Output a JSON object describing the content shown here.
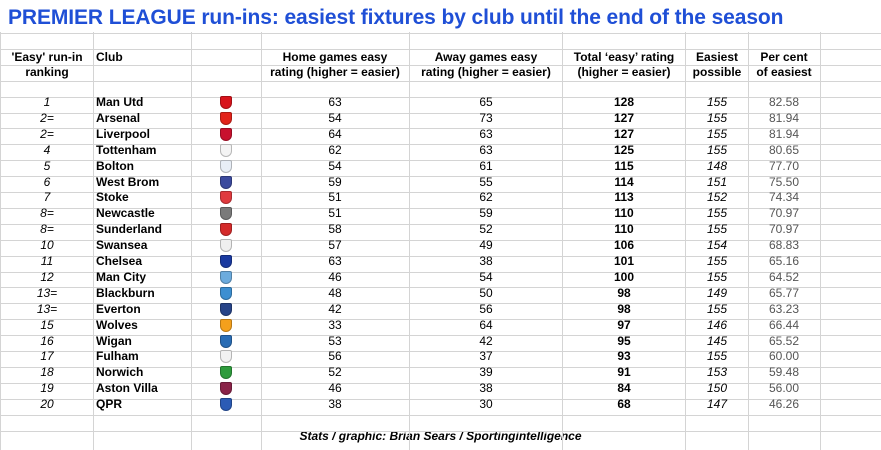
{
  "title": "PREMIER LEAGUE run-ins: easiest fixtures by club until the end of the season",
  "columns": {
    "rank": [
      "'Easy' run-in",
      "ranking"
    ],
    "club": "Club",
    "home": [
      "Home games easy",
      "rating (higher = easier)"
    ],
    "away": [
      "Away games easy",
      "rating (higher = easier)"
    ],
    "total": [
      "Total ‘easy’ rating",
      "(higher = easier)"
    ],
    "easiest": [
      "Easiest",
      "possible"
    ],
    "percent": [
      "Per cent",
      "of easiest"
    ]
  },
  "footer": "Stats / graphic: Brian Sears / Sportingintelligence",
  "chart_data": {
    "type": "table",
    "rows": [
      {
        "rank": "1",
        "club": "Man Utd",
        "home": "63",
        "away": "65",
        "total": "128",
        "easiest": "155",
        "percent": "82.58",
        "crest_color": "#d8141c"
      },
      {
        "rank": "2=",
        "club": "Arsenal",
        "home": "54",
        "away": "73",
        "total": "127",
        "easiest": "155",
        "percent": "81.94",
        "crest_color": "#e2231a"
      },
      {
        "rank": "2=",
        "club": "Liverpool",
        "home": "64",
        "away": "63",
        "total": "127",
        "easiest": "155",
        "percent": "81.94",
        "crest_color": "#c8102e"
      },
      {
        "rank": "4",
        "club": "Tottenham",
        "home": "62",
        "away": "63",
        "total": "125",
        "easiest": "155",
        "percent": "80.65",
        "crest_color": "#f4f4f4"
      },
      {
        "rank": "5",
        "club": "Bolton",
        "home": "54",
        "away": "61",
        "total": "115",
        "easiest": "148",
        "percent": "77.70",
        "crest_color": "#e8eef6"
      },
      {
        "rank": "6",
        "club": "West Brom",
        "home": "59",
        "away": "55",
        "total": "114",
        "easiest": "151",
        "percent": "75.50",
        "crest_color": "#3b4a9e"
      },
      {
        "rank": "7",
        "club": "Stoke",
        "home": "51",
        "away": "62",
        "total": "113",
        "easiest": "152",
        "percent": "74.34",
        "crest_color": "#e03a3e"
      },
      {
        "rank": "8=",
        "club": "Newcastle",
        "home": "51",
        "away": "59",
        "total": "110",
        "easiest": "155",
        "percent": "70.97",
        "crest_color": "#7a7a7a"
      },
      {
        "rank": "8=",
        "club": "Sunderland",
        "home": "58",
        "away": "52",
        "total": "110",
        "easiest": "155",
        "percent": "70.97",
        "crest_color": "#d42a2a"
      },
      {
        "rank": "10",
        "club": "Swansea",
        "home": "57",
        "away": "49",
        "total": "106",
        "easiest": "154",
        "percent": "68.83",
        "crest_color": "#efefef"
      },
      {
        "rank": "11",
        "club": "Chelsea",
        "home": "63",
        "away": "38",
        "total": "101",
        "easiest": "155",
        "percent": "65.16",
        "crest_color": "#1a3aa0"
      },
      {
        "rank": "12",
        "club": "Man City",
        "home": "46",
        "away": "54",
        "total": "100",
        "easiest": "155",
        "percent": "64.52",
        "crest_color": "#6cabdd"
      },
      {
        "rank": "13=",
        "club": "Blackburn",
        "home": "48",
        "away": "50",
        "total": "98",
        "easiest": "149",
        "percent": "65.77",
        "crest_color": "#3d8fd1"
      },
      {
        "rank": "13=",
        "club": "Everton",
        "home": "42",
        "away": "56",
        "total": "98",
        "easiest": "155",
        "percent": "63.23",
        "crest_color": "#274488"
      },
      {
        "rank": "15",
        "club": "Wolves",
        "home": "33",
        "away": "64",
        "total": "97",
        "easiest": "146",
        "percent": "66.44",
        "crest_color": "#f4a01c"
      },
      {
        "rank": "16",
        "club": "Wigan",
        "home": "53",
        "away": "42",
        "total": "95",
        "easiest": "145",
        "percent": "65.52",
        "crest_color": "#2a6db5"
      },
      {
        "rank": "17",
        "club": "Fulham",
        "home": "56",
        "away": "37",
        "total": "93",
        "easiest": "155",
        "percent": "60.00",
        "crest_color": "#f2f2f2"
      },
      {
        "rank": "18",
        "club": "Norwich",
        "home": "52",
        "away": "39",
        "total": "91",
        "easiest": "153",
        "percent": "59.48",
        "crest_color": "#2e9b3c"
      },
      {
        "rank": "19",
        "club": "Aston Villa",
        "home": "46",
        "away": "38",
        "total": "84",
        "easiest": "150",
        "percent": "56.00",
        "crest_color": "#8a2348"
      },
      {
        "rank": "20",
        "club": "QPR",
        "home": "38",
        "away": "30",
        "total": "68",
        "easiest": "147",
        "percent": "46.26",
        "crest_color": "#2b5bb5"
      }
    ]
  }
}
